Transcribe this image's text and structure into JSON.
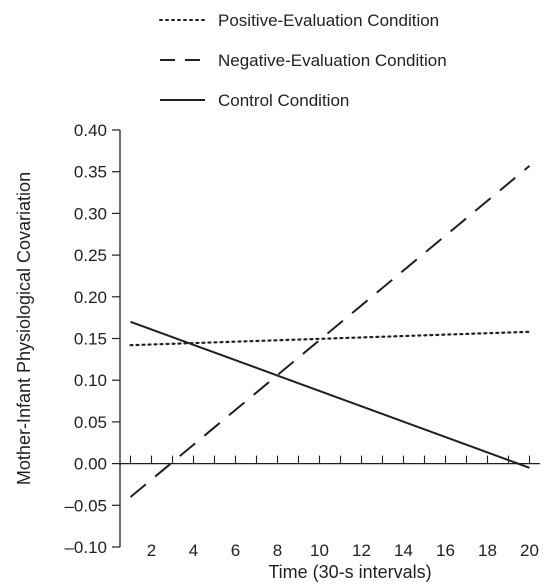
{
  "chart_data": {
    "type": "line",
    "title": "",
    "xlabel": "Time (30-s intervals)",
    "ylabel": "Mother-Infant Physiological Covariation",
    "xlim": [
      0.5,
      20.5
    ],
    "ylim": [
      -0.1,
      0.4
    ],
    "x_ticks": [
      2,
      4,
      6,
      8,
      10,
      12,
      14,
      16,
      18,
      20
    ],
    "x_tick_labels": [
      "2",
      "4",
      "6",
      "8",
      "10",
      "12",
      "14",
      "16",
      "18",
      "20"
    ],
    "y_ticks": [
      -0.1,
      -0.05,
      0.0,
      0.05,
      0.1,
      0.15,
      0.2,
      0.25,
      0.3,
      0.35,
      0.4
    ],
    "y_tick_labels": [
      "–0.10",
      "–0.05",
      "0.00",
      "0.05",
      "0.10",
      "0.15",
      "0.20",
      "0.25",
      "0.30",
      "0.35",
      "0.40"
    ],
    "grid": false,
    "legend_position": "top",
    "series": [
      {
        "name": "Positive-Evaluation Condition",
        "style": "dotted",
        "x": [
          1,
          20
        ],
        "y": [
          0.142,
          0.158
        ]
      },
      {
        "name": "Negative-Evaluation Condition",
        "style": "dashed",
        "x": [
          1,
          20
        ],
        "y": [
          -0.04,
          0.357
        ]
      },
      {
        "name": "Control Condition",
        "style": "solid",
        "x": [
          1,
          20
        ],
        "y": [
          0.17,
          -0.005
        ]
      }
    ],
    "colors": {
      "ink": "#231f20"
    }
  }
}
